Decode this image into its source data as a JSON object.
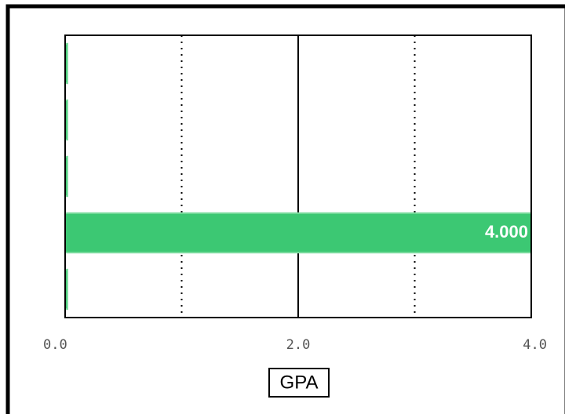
{
  "chart_data": {
    "type": "barh",
    "categories": [
      null,
      null,
      null,
      null,
      null
    ],
    "values": [
      0.02,
      0.02,
      0.02,
      4.0,
      0.02
    ],
    "value_labels": [
      null,
      null,
      null,
      "4.000",
      null
    ],
    "color": "#3cc873",
    "xlabel": "GPA",
    "xlim": [
      0,
      4
    ],
    "xticks": [
      {
        "value": 0,
        "label": "0.0"
      },
      {
        "value": 2,
        "label": "2.0"
      },
      {
        "value": 4,
        "label": "4.0"
      }
    ],
    "minor_grid": [
      1,
      3
    ],
    "grid": true
  }
}
